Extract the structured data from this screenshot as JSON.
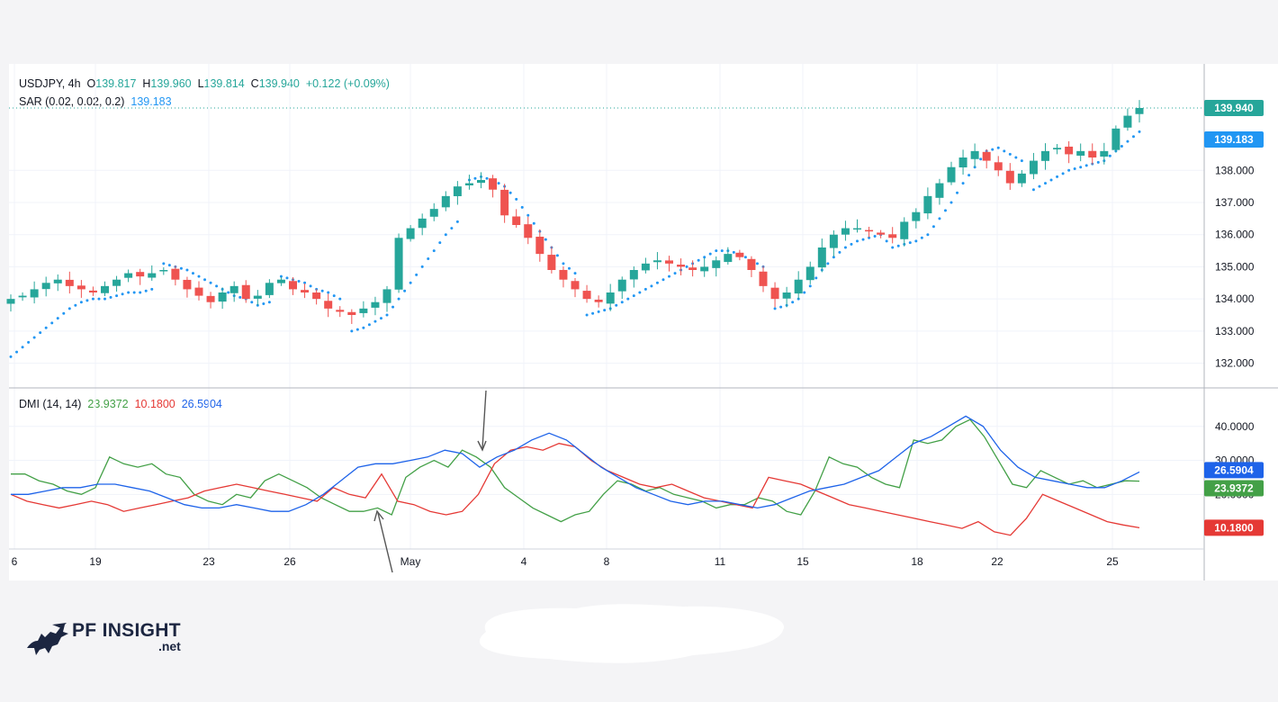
{
  "header": {
    "symbol": "USDJPY, 4h",
    "open_label": "O",
    "open": "139.817",
    "high_label": "H",
    "high": "139.960",
    "low_label": "L",
    "low": "139.814",
    "close_label": "C",
    "close": "139.940",
    "change": "+0.122 (+0.09%)",
    "sar_label": "SAR (0.02, 0.02, 0.2)",
    "sar_value": "139.183"
  },
  "dmi_header": {
    "label": "DMI (14, 14)",
    "plus_di": "23.9372",
    "minus_di": "10.1800",
    "adx": "26.5904"
  },
  "logo": {
    "main": "PF INSIGHT",
    "sub": ".net"
  },
  "colors": {
    "up": "#26a69a",
    "down": "#ef5350",
    "sar": "#2196f3",
    "plus_di": "#43a047",
    "minus_di": "#e53935",
    "adx": "#1e63e9"
  },
  "chart_data": [
    {
      "type": "candlestick",
      "title": "USDJPY, 4h",
      "price_axis_ticks": [
        "132.000",
        "133.000",
        "134.000",
        "135.000",
        "136.000",
        "137.000",
        "138.000"
      ],
      "ylim": [
        131.4,
        140.5
      ],
      "x_tick_labels": [
        "6",
        "19",
        "23",
        "26",
        "May",
        "4",
        "8",
        "11",
        "15",
        "18",
        "22",
        "25"
      ],
      "last_price_badge": "139.940",
      "sar_badge": "139.183",
      "close_series": [
        134.0,
        134.1,
        134.3,
        134.5,
        134.6,
        134.4,
        134.3,
        134.2,
        134.4,
        134.6,
        134.8,
        134.7,
        134.8,
        134.9,
        134.6,
        134.3,
        134.1,
        133.9,
        134.2,
        134.4,
        134.0,
        134.1,
        134.5,
        134.6,
        134.3,
        134.2,
        134.0,
        133.7,
        133.6,
        133.5,
        133.7,
        133.9,
        134.3,
        135.9,
        136.2,
        136.5,
        136.8,
        137.2,
        137.5,
        137.6,
        137.7,
        137.4,
        136.6,
        136.3,
        135.9,
        135.4,
        134.9,
        134.6,
        134.3,
        134.0,
        133.9,
        134.2,
        134.6,
        134.9,
        135.1,
        135.2,
        135.1,
        135.0,
        134.9,
        135.0,
        135.2,
        135.4,
        135.3,
        134.9,
        134.4,
        134.0,
        134.2,
        134.6,
        135.0,
        135.6,
        136.0,
        136.2,
        136.2,
        136.1,
        136.0,
        135.9,
        136.4,
        136.7,
        137.2,
        137.6,
        138.1,
        138.4,
        138.6,
        138.3,
        138.0,
        137.6,
        137.9,
        138.3,
        138.6,
        138.7,
        138.5,
        138.6,
        138.4,
        138.6,
        139.3,
        139.7,
        139.94
      ],
      "sar_series": [
        132.2,
        132.5,
        132.8,
        133.1,
        133.4,
        133.7,
        133.9,
        134.0,
        134.0,
        134.1,
        134.2,
        134.2,
        134.3,
        135.1,
        135.0,
        134.9,
        134.7,
        134.5,
        134.3,
        134.1,
        134.0,
        133.8,
        133.9,
        134.7,
        134.6,
        134.5,
        134.3,
        134.2,
        134.0,
        133.0,
        133.1,
        133.3,
        133.5,
        134.0,
        134.5,
        135.0,
        135.5,
        136.0,
        136.4,
        137.7,
        137.8,
        137.7,
        137.5,
        137.1,
        136.6,
        136.1,
        135.6,
        135.1,
        134.8,
        133.5,
        133.6,
        133.7,
        133.9,
        134.1,
        134.3,
        134.5,
        134.7,
        134.9,
        135.1,
        135.3,
        135.5,
        135.5,
        135.4,
        135.2,
        135.0,
        133.7,
        133.8,
        134.0,
        134.4,
        134.9,
        135.3,
        135.6,
        135.8,
        135.9,
        136.0,
        135.6,
        135.7,
        135.8,
        136.0,
        136.5,
        137.0,
        137.6,
        138.1,
        138.6,
        138.7,
        138.5,
        138.3,
        137.4,
        137.6,
        137.8,
        138.0,
        138.1,
        138.2,
        138.3,
        138.6,
        138.9,
        139.2
      ]
    },
    {
      "type": "line",
      "title": "DMI (14, 14)",
      "ylim": [
        5,
        50
      ],
      "y_tick_labels": [
        "20.0000",
        "30.0000",
        "40.0000"
      ],
      "series": [
        {
          "name": "+DI",
          "last": 23.9372,
          "values": [
            26,
            26,
            24,
            23,
            21,
            20,
            22,
            31,
            29,
            28,
            29,
            26,
            25,
            20,
            18,
            17,
            20,
            19,
            24,
            26,
            24,
            22,
            19,
            17,
            15,
            15,
            16,
            14,
            25,
            28,
            30,
            28,
            33,
            31,
            28,
            22,
            19,
            16,
            14,
            12,
            14,
            15,
            20,
            24,
            23,
            21,
            22,
            20,
            19,
            18,
            16,
            17,
            17,
            19,
            18,
            15,
            14,
            21,
            31,
            29,
            28,
            25,
            23,
            22,
            36,
            35,
            36,
            40,
            42,
            37,
            30,
            23,
            22,
            27,
            25,
            23,
            24,
            22,
            23,
            24,
            23.9
          ]
        },
        {
          "name": "-DI",
          "last": 10.18,
          "values": [
            20,
            18,
            17,
            16,
            17,
            18,
            17,
            15,
            16,
            17,
            18,
            19,
            21,
            22,
            23,
            22,
            21,
            20,
            19,
            18,
            22,
            20,
            19,
            26,
            18,
            17,
            15,
            14,
            15,
            20,
            29,
            33,
            34,
            33,
            35,
            34,
            30,
            27,
            25,
            23,
            22,
            23,
            21,
            19,
            18,
            17,
            16,
            25,
            24,
            23,
            21,
            19,
            17,
            16,
            15,
            14,
            13,
            12,
            11,
            10,
            12,
            9,
            8,
            13,
            20,
            18,
            16,
            14,
            12,
            11,
            10.2
          ]
        },
        {
          "name": "ADX",
          "last": 26.5904,
          "values": [
            20,
            20,
            21,
            22,
            22,
            23,
            23,
            22,
            21,
            19,
            17,
            16,
            16,
            17,
            16,
            15,
            15,
            17,
            20,
            24,
            28,
            29,
            29,
            30,
            31,
            33,
            32,
            28,
            31,
            33,
            36,
            38,
            36,
            32,
            28,
            25,
            22,
            20,
            18,
            17,
            18,
            18,
            17,
            16,
            17,
            19,
            21,
            22,
            23,
            25,
            27,
            31,
            35,
            37,
            40,
            43,
            40,
            33,
            28,
            25,
            24,
            23,
            22,
            22,
            24,
            26.6
          ]
        }
      ]
    }
  ]
}
